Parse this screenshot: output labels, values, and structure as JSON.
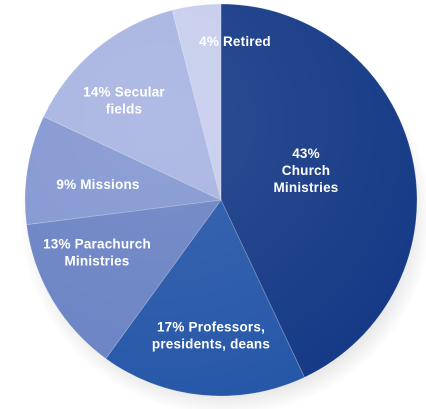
{
  "chart_data": {
    "type": "pie",
    "slices": [
      {
        "name": "Church Ministries",
        "value": 43,
        "label_lines": [
          "43%",
          "Church",
          "Ministries"
        ],
        "color": "#163a86"
      },
      {
        "name": "Professors, presidents, deans",
        "value": 17,
        "label_lines": [
          "17% Professors,",
          "presidents, deans"
        ],
        "color": "#2657a8"
      },
      {
        "name": "Parachurch Ministries",
        "value": 13,
        "label_lines": [
          "13%  Parachurch",
          "Ministries"
        ],
        "color": "#6b83c4"
      },
      {
        "name": "Missions",
        "value": 9,
        "label_lines": [
          "9% Missions"
        ],
        "color": "#8397d1"
      },
      {
        "name": "Secular fields",
        "value": 14,
        "label_lines": [
          "14% Secular",
          "fields"
        ],
        "color": "#a7b4e1"
      },
      {
        "name": "Retired",
        "value": 4,
        "label_lines": [
          "4% Retired"
        ],
        "color": "#c6cdec"
      }
    ]
  }
}
